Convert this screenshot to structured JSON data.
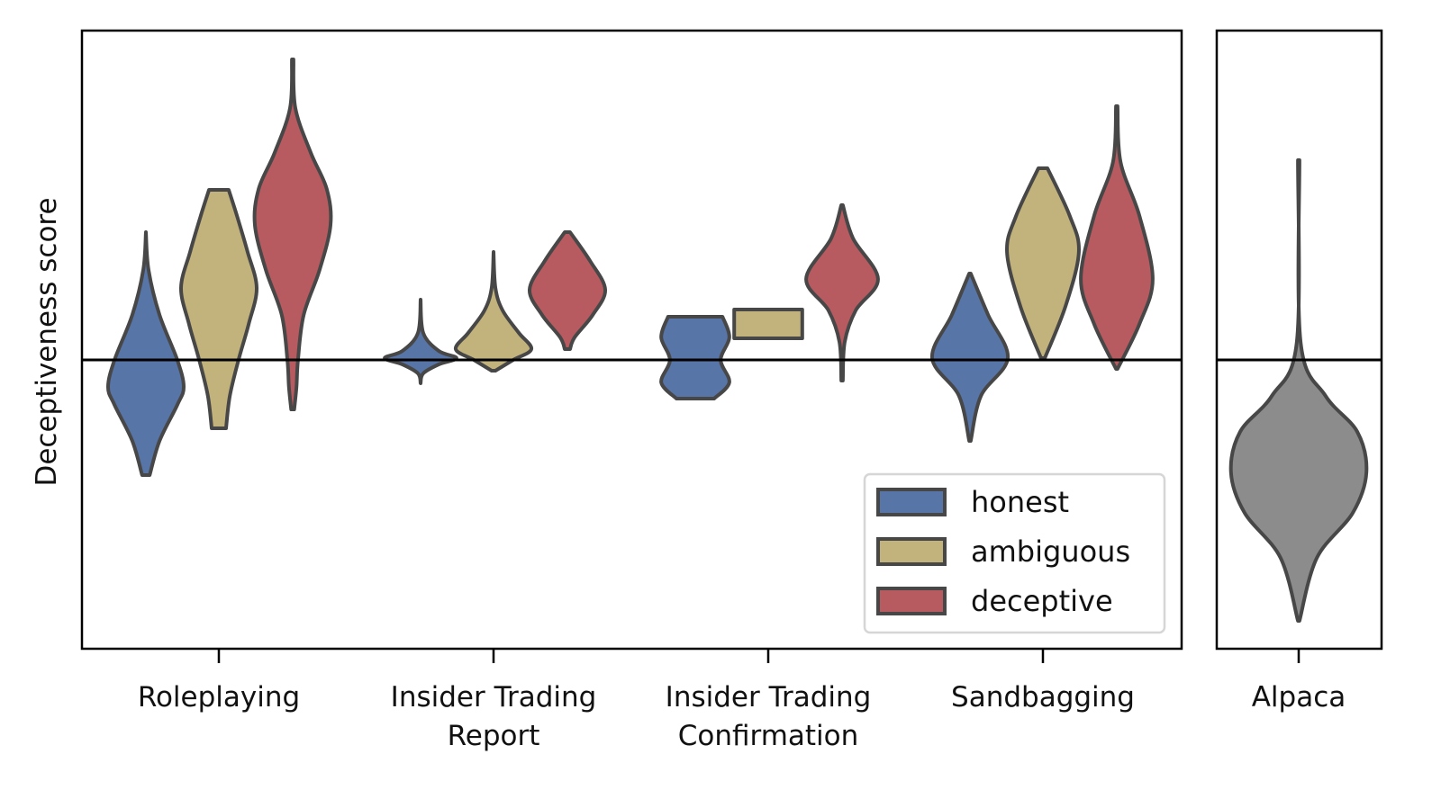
{
  "chart_data": {
    "type": "violin",
    "title": "",
    "ylabel": "Deceptiveness score",
    "xlabel": "",
    "ylim": [
      -3.21,
      3.66
    ],
    "yticks_shown": false,
    "reference_line_y": 0,
    "hues": [
      {
        "name": "honest",
        "color": "#5875a8"
      },
      {
        "name": "ambiguous",
        "color": "#c2b27b"
      },
      {
        "name": "deceptive",
        "color": "#b75b60"
      }
    ],
    "legend": {
      "placement": "lower-right",
      "entries": [
        "honest",
        "ambiguous",
        "deceptive"
      ]
    },
    "panels": [
      {
        "name": "main",
        "categories": [
          {
            "label": [
              "Roleplaying"
            ],
            "violins": {
              "honest": [
                [
                  1.42,
                  0
                ],
                [
                  1.0,
                  0.07
                ],
                [
                  0.5,
                  0.36
                ],
                [
                  0,
                  0.83
                ],
                [
                  -0.3,
                  1.0
                ],
                [
                  -0.5,
                  0.83
                ],
                [
                  -0.9,
                  0.36
                ],
                [
                  -1.28,
                  0.1
                ]
              ],
              "ambiguous": [
                [
                  1.89,
                  0.26
                ],
                [
                  1.6,
                  0.48
                ],
                [
                  1.2,
                  0.76
                ],
                [
                  0.8,
                  1.0
                ],
                [
                  0.4,
                  0.79
                ],
                [
                  0,
                  0.52
                ],
                [
                  -0.4,
                  0.29
                ],
                [
                  -0.76,
                  0.19
                ]
              ],
              "deceptive": [
                [
                  3.34,
                  0.02
                ],
                [
                  2.8,
                  0.07
                ],
                [
                  2.3,
                  0.48
                ],
                [
                  1.9,
                  0.9
                ],
                [
                  1.5,
                  1.0
                ],
                [
                  1.0,
                  0.71
                ],
                [
                  0.5,
                  0.29
                ],
                [
                  0,
                  0.14
                ],
                [
                  -0.3,
                  0.1
                ],
                [
                  -0.55,
                  0.04
                ]
              ]
            }
          },
          {
            "label": [
              "Insider Trading",
              "Report"
            ],
            "violins": {
              "honest": [
                [
                  0.67,
                  0
                ],
                [
                  0.3,
                  0.07
                ],
                [
                  0.1,
                  0.48
                ],
                [
                  0.02,
                  0.95
                ],
                [
                  -0.05,
                  0.48
                ],
                [
                  -0.15,
                  0.07
                ],
                [
                  -0.26,
                  0
                ]
              ],
              "ambiguous": [
                [
                  1.2,
                  0
                ],
                [
                  0.8,
                  0.05
                ],
                [
                  0.55,
                  0.24
                ],
                [
                  0.3,
                  0.67
                ],
                [
                  0.12,
                  1.0
                ],
                [
                  0,
                  0.52
                ],
                [
                  -0.12,
                  0.05
                ]
              ],
              "deceptive": [
                [
                  1.42,
                  0.07
                ],
                [
                  1.1,
                  0.6
                ],
                [
                  0.78,
                  1.0
                ],
                [
                  0.5,
                  0.67
                ],
                [
                  0.25,
                  0.19
                ],
                [
                  0.12,
                  0.07
                ]
              ]
            }
          },
          {
            "label": [
              "Insider Trading",
              "Confirmation"
            ],
            "violins": {
              "honest": [
                [
                  0.48,
                  0.72
                ],
                [
                  0.25,
                  0.9
                ],
                [
                  0,
                  0.67
                ],
                [
                  -0.25,
                  0.9
                ],
                [
                  -0.43,
                  0.5
                ]
              ],
              "ambiguous": [
                [
                  0.56,
                  0.9
                ],
                [
                  0.24,
                  0.9
                ]
              ],
              "deceptive": [
                [
                  1.72,
                  0.02
                ],
                [
                  1.35,
                  0.29
                ],
                [
                  0.9,
                  0.95
                ],
                [
                  0.55,
                  0.36
                ],
                [
                  0.2,
                  0.07
                ],
                [
                  -0.23,
                  0.02
                ]
              ]
            }
          },
          {
            "label": [
              "Sandbagging"
            ],
            "violins": {
              "honest": [
                [
                  0.96,
                  0.02
                ],
                [
                  0.5,
                  0.48
                ],
                [
                  0.02,
                  1.0
                ],
                [
                  -0.4,
                  0.29
                ],
                [
                  -0.9,
                  0.02
                ]
              ],
              "ambiguous": [
                [
                  2.13,
                  0.12
                ],
                [
                  1.6,
                  0.71
                ],
                [
                  1.2,
                  0.95
                ],
                [
                  0.6,
                  0.6
                ],
                [
                  0.02,
                  0.05
                ]
              ],
              "deceptive": [
                [
                  2.82,
                  0.02
                ],
                [
                  2.2,
                  0.1
                ],
                [
                  1.6,
                  0.6
                ],
                [
                  0.9,
                  0.95
                ],
                [
                  0.4,
                  0.6
                ],
                [
                  -0.1,
                  0.02
                ]
              ]
            }
          }
        ]
      },
      {
        "name": "alpaca",
        "categories": [
          {
            "label": [
              "Alpaca"
            ],
            "color": "#8c8c8c",
            "violins": {
              "all": [
                [
                  2.22,
                  0.02
                ],
                [
                  0.2,
                  0.05
                ],
                [
                  -0.4,
                  0.71
                ],
                [
                  -0.8,
                  1.55
                ],
                [
                  -1.25,
                  1.79
                ],
                [
                  -1.7,
                  1.43
                ],
                [
                  -2.2,
                  0.48
                ],
                [
                  -2.9,
                  0.02
                ]
              ]
            }
          }
        ]
      }
    ]
  }
}
